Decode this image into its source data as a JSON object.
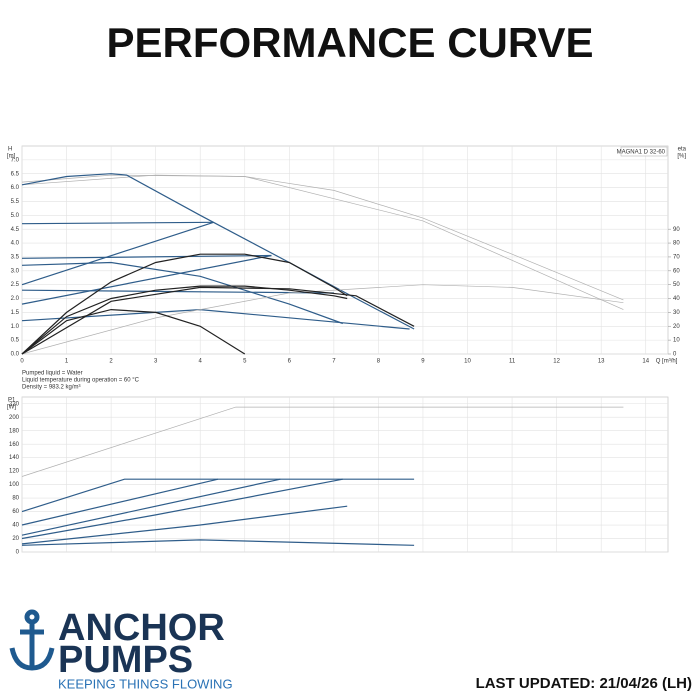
{
  "page_title": "PERFORMANCE CURVE",
  "footer": {
    "brand_top": "ANCHOR",
    "brand_bottom": "PUMPS",
    "tagline": "KEEPING THINGS FLOWING",
    "updated": "LAST UPDATED: 21/04/26 (LH)"
  },
  "chart_data": [
    {
      "type": "line",
      "y_label_symbol": "H",
      "y_label_unit": "[m]",
      "y2_label_symbol": "eta",
      "y2_label_unit": "[%]",
      "x_label": "Q [m³/h]",
      "annotation": "MAGNA1 D 32-60",
      "notes": [
        "Pumped liquid = Water",
        "Liquid temperature during operation = 60 °C",
        "Density = 983.2 kg/m³"
      ],
      "xlim": [
        0,
        14.5
      ],
      "xticks": [
        0,
        1,
        2,
        3,
        4,
        5,
        6,
        7,
        8,
        9,
        10,
        11,
        12,
        13,
        14
      ],
      "ylim": [
        0,
        7.5
      ],
      "yticks": [
        {
          "value": 0,
          "label": "0.0"
        },
        {
          "value": 0.5,
          "label": "0.5"
        },
        {
          "value": 1,
          "label": "1.0"
        },
        {
          "value": 1.5,
          "label": "1.5"
        },
        {
          "value": 2,
          "label": "2.0"
        },
        {
          "value": 2.5,
          "label": "2.5"
        },
        {
          "value": 3,
          "label": "3.0"
        },
        {
          "value": 3.5,
          "label": "3.5"
        },
        {
          "value": 4,
          "label": "4.0"
        },
        {
          "value": 4.5,
          "label": "4.5"
        },
        {
          "value": 5,
          "label": "5.0"
        },
        {
          "value": 5.5,
          "label": "5.5"
        },
        {
          "value": 6,
          "label": "6.0"
        },
        {
          "value": 6.5,
          "label": "6.5"
        },
        {
          "value": 7,
          "label": "7.0"
        }
      ],
      "y2lim": [
        0,
        150
      ],
      "y2ticks": [
        0,
        10,
        20,
        30,
        40,
        50,
        60,
        70,
        80,
        90
      ],
      "grid": true,
      "series": [
        {
          "color": "#b0b0b0",
          "x": [
            0,
            2,
            5,
            7,
            9,
            11,
            13.5
          ],
          "values": [
            6.2,
            6.45,
            6.4,
            5.9,
            4.9,
            3.6,
            1.95
          ]
        },
        {
          "color": "#b0b0b0",
          "x": [
            0,
            3,
            5,
            9,
            13.5
          ],
          "values": [
            6.1,
            6.45,
            6.4,
            4.8,
            1.6
          ]
        },
        {
          "color": "#2f5d8a",
          "x": [
            0,
            1,
            2,
            2.35,
            4,
            6,
            7.5,
            8.8
          ],
          "values": [
            6.1,
            6.4,
            6.5,
            6.45,
            5.0,
            3.3,
            2.0,
            0.9
          ]
        },
        {
          "color": "#2f5d8a",
          "x": [
            0,
            4.3
          ],
          "values": [
            4.7,
            4.75
          ]
        },
        {
          "color": "#2f5d8a",
          "x": [
            0,
            4.3
          ],
          "values": [
            2.5,
            4.75
          ]
        },
        {
          "color": "#2f5d8a",
          "x": [
            0,
            5.6
          ],
          "values": [
            3.45,
            3.55
          ]
        },
        {
          "color": "#2f5d8a",
          "x": [
            0,
            5.6
          ],
          "values": [
            1.8,
            3.55
          ]
        },
        {
          "color": "#2f5d8a",
          "x": [
            0,
            2,
            4,
            6,
            7.2
          ],
          "values": [
            3.2,
            3.3,
            2.8,
            1.8,
            1.1
          ]
        },
        {
          "color": "#2f5d8a",
          "x": [
            0,
            7
          ],
          "values": [
            2.3,
            2.2
          ]
        },
        {
          "color": "#2f5d8a",
          "x": [
            0,
            4,
            8.7
          ],
          "values": [
            1.2,
            1.6,
            0.9
          ]
        },
        {
          "color": "#b0b0b0",
          "axis": "y2",
          "x": [
            0,
            3,
            6,
            9,
            11,
            13.5
          ],
          "values": [
            0,
            26,
            44,
            50,
            48,
            37
          ]
        },
        {
          "color": "#222222",
          "axis": "y2",
          "x": [
            0,
            1,
            2,
            3,
            4,
            5,
            6,
            7,
            7.3
          ],
          "values": [
            0,
            27,
            40,
            46,
            49,
            49,
            46,
            42,
            40
          ]
        },
        {
          "color": "#222222",
          "axis": "y2",
          "x": [
            0,
            1,
            2,
            3,
            4,
            5,
            6,
            7,
            7.3
          ],
          "values": [
            0,
            30,
            52,
            66,
            72,
            72,
            66,
            48,
            42
          ]
        },
        {
          "color": "#222222",
          "axis": "y2",
          "x": [
            0,
            1,
            2,
            3,
            4,
            5
          ],
          "values": [
            0,
            24,
            32,
            30,
            20,
            0
          ]
        },
        {
          "color": "#222222",
          "axis": "y2",
          "x": [
            0,
            2,
            4,
            6,
            7.5,
            8.8
          ],
          "values": [
            0,
            38,
            48,
            47,
            42,
            20
          ]
        }
      ]
    },
    {
      "type": "line",
      "y_label_symbol": "P1",
      "y_label_unit": "[W]",
      "xlim": [
        0,
        14.5
      ],
      "ylim": [
        0,
        230
      ],
      "yticks": [
        0,
        20,
        40,
        60,
        80,
        100,
        120,
        140,
        160,
        180,
        200,
        220
      ],
      "grid": true,
      "series": [
        {
          "color": "#b0b0b0",
          "x": [
            0,
            4.8,
            13.5
          ],
          "values": [
            112,
            215,
            215
          ]
        },
        {
          "color": "#2f5d8a",
          "x": [
            0,
            2.3,
            8.8
          ],
          "values": [
            60,
            108,
            108
          ]
        },
        {
          "color": "#2f5d8a",
          "x": [
            0,
            4.4
          ],
          "values": [
            40,
            108
          ]
        },
        {
          "color": "#2f5d8a",
          "x": [
            0,
            5.8
          ],
          "values": [
            25,
            108
          ]
        },
        {
          "color": "#2f5d8a",
          "x": [
            0,
            3,
            7.2
          ],
          "values": [
            20,
            55,
            108
          ]
        },
        {
          "color": "#2f5d8a",
          "x": [
            0,
            4,
            7.3
          ],
          "values": [
            12,
            40,
            68
          ]
        },
        {
          "color": "#2f5d8a",
          "x": [
            0,
            4,
            8.8
          ],
          "values": [
            10,
            18,
            10
          ]
        }
      ]
    }
  ]
}
